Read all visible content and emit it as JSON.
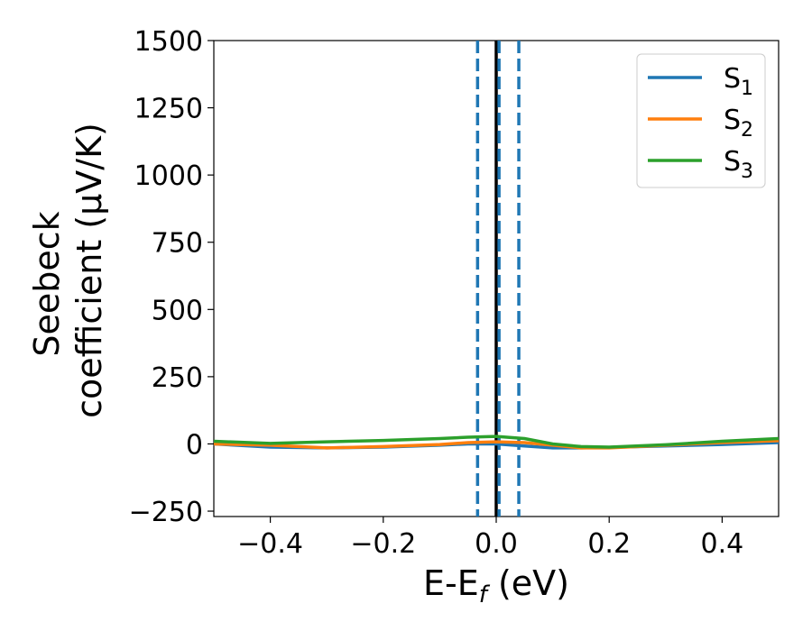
{
  "chart_data": {
    "type": "line",
    "title": "",
    "xlabel": "E-E",
    "xlabel_sub": "f",
    "xlabel_unit": " (eV)",
    "ylabel_line1": "Seebeck",
    "ylabel_line2": "coefficient  (μV/K)",
    "xlim": [
      -0.5,
      0.5
    ],
    "ylim": [
      -270,
      1500
    ],
    "xticks": [
      -0.4,
      -0.2,
      0.0,
      0.2,
      0.4
    ],
    "xtick_labels": [
      "−0.4",
      "−0.2",
      "0.0",
      "0.2",
      "0.4"
    ],
    "yticks": [
      -250,
      0,
      250,
      500,
      750,
      1000,
      1250,
      1500
    ],
    "ytick_labels": [
      "−250",
      "0",
      "250",
      "500",
      "750",
      "1000",
      "1250",
      "1500"
    ],
    "grid": false,
    "legend_position": "top-right",
    "series": [
      {
        "name": "S",
        "name_sub": "1",
        "color": "#1f77b4",
        "x": [
          -0.5,
          -0.4,
          -0.3,
          -0.2,
          -0.1,
          -0.05,
          0.0,
          0.05,
          0.1,
          0.15,
          0.2,
          0.3,
          0.4,
          0.5
        ],
        "y": [
          0,
          -12,
          -15,
          -12,
          -5,
          0,
          0,
          -8,
          -15,
          -15,
          -13,
          -8,
          -2,
          5
        ]
      },
      {
        "name": "S",
        "name_sub": "2",
        "color": "#ff7f0e",
        "x": [
          -0.5,
          -0.4,
          -0.3,
          -0.2,
          -0.1,
          -0.05,
          0.0,
          0.05,
          0.1,
          0.15,
          0.2,
          0.3,
          0.4,
          0.5
        ],
        "y": [
          0,
          -5,
          -15,
          -10,
          -2,
          5,
          8,
          5,
          -5,
          -15,
          -15,
          -5,
          5,
          12
        ]
      },
      {
        "name": "S",
        "name_sub": "3",
        "color": "#2ca02c",
        "x": [
          -0.5,
          -0.4,
          -0.3,
          -0.2,
          -0.1,
          -0.05,
          0.0,
          0.05,
          0.1,
          0.15,
          0.2,
          0.3,
          0.4,
          0.5
        ],
        "y": [
          10,
          2,
          8,
          13,
          20,
          25,
          28,
          20,
          0,
          -10,
          -12,
          -3,
          10,
          20
        ]
      }
    ],
    "vlines": [
      {
        "x": 0.0,
        "style": "solid",
        "color": "#000000"
      },
      {
        "x": -0.033,
        "style": "dashed",
        "color": "#1f77b4"
      },
      {
        "x": 0.005,
        "style": "dashed",
        "color": "#1f77b4"
      },
      {
        "x": 0.04,
        "style": "dashed",
        "color": "#1f77b4"
      }
    ]
  }
}
